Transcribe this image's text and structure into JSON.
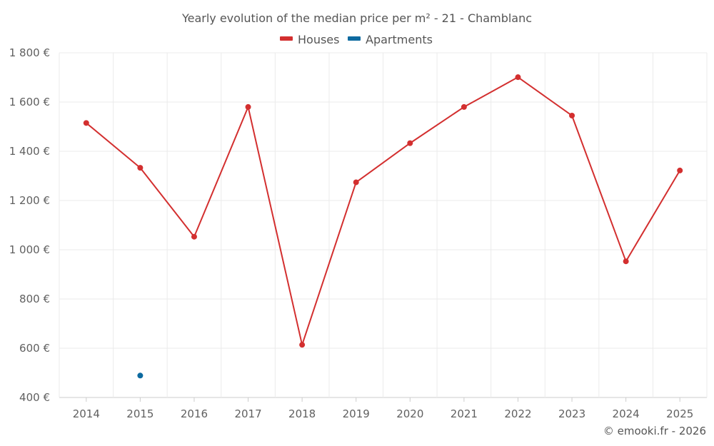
{
  "chart_data": {
    "type": "line",
    "title": "Yearly evolution of the median price per m² - 21 - Chamblanc",
    "categories": [
      "2014",
      "2015",
      "2016",
      "2017",
      "2018",
      "2019",
      "2020",
      "2021",
      "2022",
      "2023",
      "2024",
      "2025"
    ],
    "series": [
      {
        "name": "Houses",
        "color": "#d32f2f",
        "values": [
          1515,
          1333,
          1053,
          1580,
          614,
          1274,
          1433,
          1580,
          1701,
          1545,
          953,
          1322
        ]
      },
      {
        "name": "Apartments",
        "color": "#0d6aa0",
        "values": [
          null,
          489,
          null,
          null,
          null,
          null,
          null,
          null,
          null,
          null,
          null,
          null
        ]
      }
    ],
    "ylim": [
      400,
      1800
    ],
    "yticks": [
      400,
      600,
      800,
      1000,
      1200,
      1400,
      1600,
      1800
    ],
    "ytick_labels": [
      "400 €",
      "600 €",
      "800 €",
      "1 000 €",
      "1 200 €",
      "1 400 €",
      "1 600 €",
      "1 800 €"
    ],
    "grid": true,
    "legend": "top-center",
    "xlabel": "",
    "ylabel": ""
  },
  "credit": "© emooki.fr - 2026"
}
